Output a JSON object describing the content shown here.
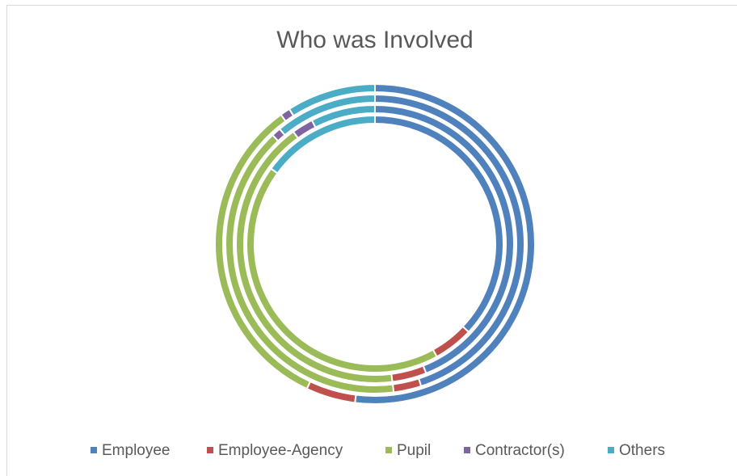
{
  "chart_data": {
    "type": "doughnut",
    "title": "Who was Involved",
    "categories": [
      "Employee",
      "Employee-Agency",
      "Pupil",
      "Contractor(s)",
      "Others"
    ],
    "colors": [
      "#4f81bd",
      "#c0504d",
      "#9bbb59",
      "#8064a2",
      "#4bacc6"
    ],
    "series": [
      {
        "values": [
          37,
          5,
          43,
          0,
          15
        ]
      },
      {
        "values": [
          44,
          4,
          42,
          2.5,
          7.5
        ]
      },
      {
        "values": [
          45,
          3,
          40,
          1,
          11
        ]
      },
      {
        "values": [
          52,
          5,
          33,
          1,
          9
        ]
      }
    ],
    "legend": "bottom"
  }
}
